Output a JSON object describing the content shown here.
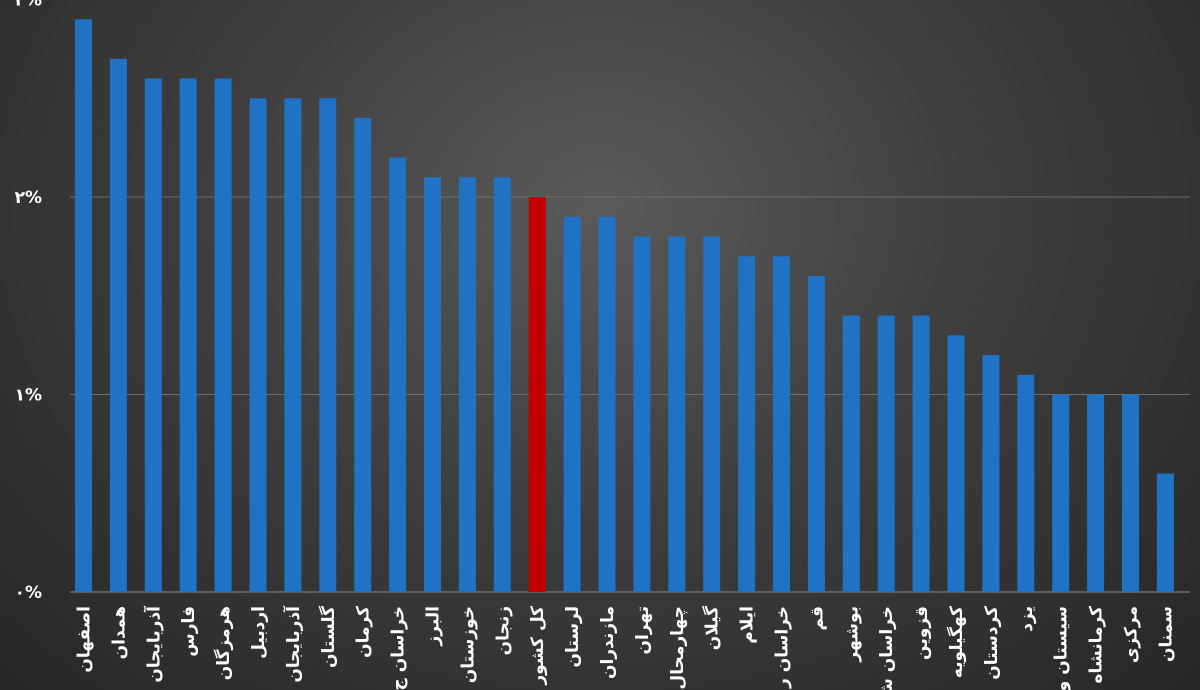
{
  "chart_data": {
    "type": "bar",
    "title": "",
    "xlabel": "",
    "ylabel": "",
    "ylim": [
      0,
      3
    ],
    "grid": true,
    "legend": "none",
    "y_ticks": [
      "۰%",
      "۱%",
      "۲%",
      "۳%"
    ],
    "y_tick_values": [
      0,
      1,
      2,
      3
    ],
    "categories": [
      "اصفهان",
      "همدان",
      "آذربایجان",
      "فارس",
      "هرمزگان",
      "اردبیل",
      "آذربایجان",
      "گلستان",
      "کرمان",
      "خراسان ج",
      "البرز",
      "خوزستان",
      "زنجان",
      "کل کشور",
      "لرستان",
      "مازندران",
      "تهران",
      "چهارمحال",
      "گیلان",
      "ایلام",
      "خراسان ر",
      "قم",
      "بوشهر",
      "خراسان ش",
      "قزوین",
      "کهگیلویه",
      "کردستان",
      "یزد",
      "سیستان و",
      "کرمانشاه",
      "مرکزی",
      "سمنان"
    ],
    "values": [
      2.9,
      2.7,
      2.6,
      2.6,
      2.6,
      2.5,
      2.5,
      2.5,
      2.4,
      2.2,
      2.1,
      2.1,
      2.1,
      2.0,
      1.9,
      1.9,
      1.8,
      1.8,
      1.8,
      1.7,
      1.7,
      1.6,
      1.4,
      1.4,
      1.4,
      1.3,
      1.2,
      1.1,
      1.0,
      1.0,
      1.0,
      0.6
    ],
    "highlight_index": 13,
    "colors": {
      "bar": "#1f72c4",
      "highlight": "#c00000",
      "grid": "#6e6e6e"
    }
  }
}
